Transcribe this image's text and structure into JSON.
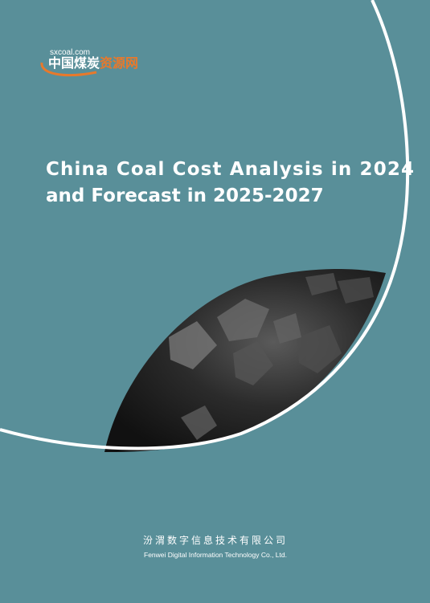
{
  "logo": {
    "site": "sxcoal.com",
    "name_white": "中国煤炭",
    "name_orange": "资源网"
  },
  "title": {
    "line1": "China Coal Cost Analysis in 2024",
    "line2": "and Forecast in 2025-2027"
  },
  "footer": {
    "company_cn": "汾渭数字信息技术有限公司",
    "company_en": "Fenwei Digital Information Technology Co., Ltd."
  }
}
